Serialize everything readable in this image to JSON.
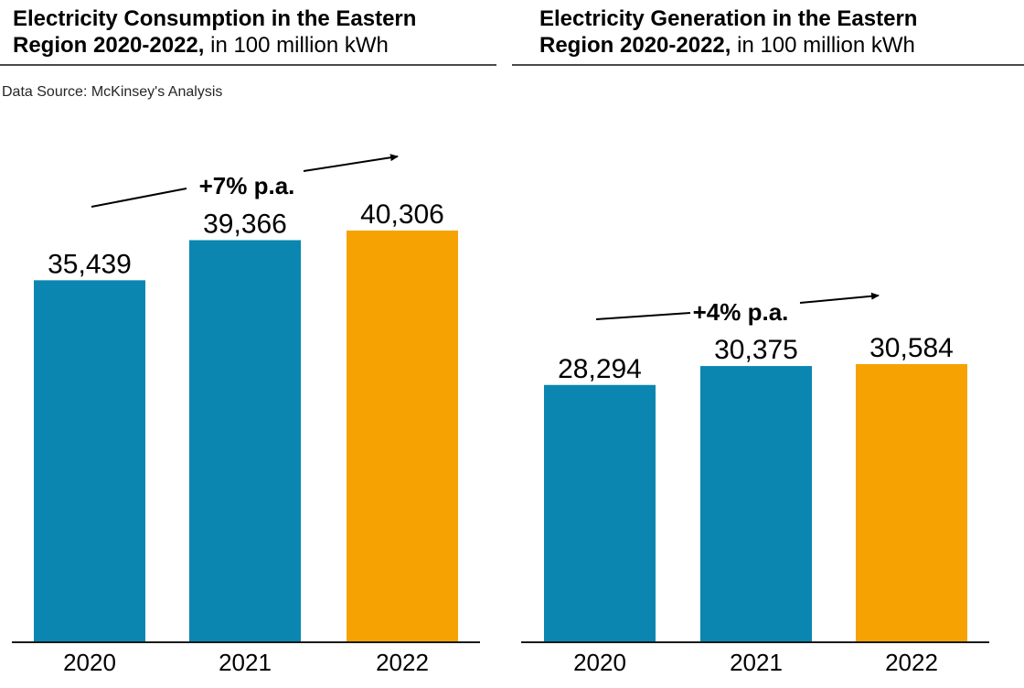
{
  "page": {
    "source_note": "Data Source: McKinsey's Analysis"
  },
  "colors": {
    "bar_blue": "#0a86b1",
    "bar_orange": "#f5a202",
    "text": "#000000",
    "source_text": "#262626",
    "title_rule": "#4a4a4a",
    "axis": "#1a1a1a"
  },
  "chart_data": [
    {
      "type": "bar",
      "title_bold": "Electricity Consumption in the Eastern Region 2020-2022,",
      "title_regular": " in 100 million kWh",
      "unit": "100 million kWh",
      "categories": [
        "2020",
        "2021",
        "2022"
      ],
      "values": [
        35439,
        39366,
        40306
      ],
      "value_labels": [
        "35,439",
        "39,366",
        "40,306"
      ],
      "bar_colors": [
        "#0a86b1",
        "#0a86b1",
        "#f5a202"
      ],
      "annotation": "+7% p.a.",
      "ylim": [
        0,
        40306
      ],
      "grid": false,
      "legend": "none"
    },
    {
      "type": "bar",
      "title_bold": "Electricity Generation in the Eastern Region 2020-2022,",
      "title_regular": " in 100 million kWh",
      "unit": "100 million kWh",
      "categories": [
        "2020",
        "2021",
        "2022"
      ],
      "values": [
        28294,
        30375,
        30584
      ],
      "value_labels": [
        "28,294",
        "30,375",
        "30,584"
      ],
      "bar_colors": [
        "#0a86b1",
        "#0a86b1",
        "#f5a202"
      ],
      "annotation": "+4% p.a.",
      "ylim": [
        0,
        30584
      ],
      "grid": false,
      "legend": "none"
    }
  ]
}
